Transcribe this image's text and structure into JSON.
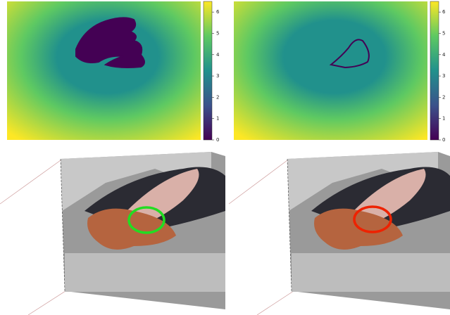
{
  "chart_data": [
    {
      "type": "heatmap",
      "colormap": [
        "#440154",
        "#3b528b",
        "#21918c",
        "#5ec962",
        "#fde725"
      ],
      "zlim": [
        0,
        6.5
      ],
      "zticks": [
        0,
        1,
        2,
        3,
        4,
        5,
        6
      ]
    },
    {
      "type": "heatmap",
      "colormap": [
        "#440154",
        "#3b528b",
        "#21918c",
        "#5ec962",
        "#fde725"
      ],
      "zlim": [
        0,
        6.5
      ],
      "zticks": [
        0,
        1,
        2,
        3,
        4,
        5,
        6
      ]
    }
  ]
}
